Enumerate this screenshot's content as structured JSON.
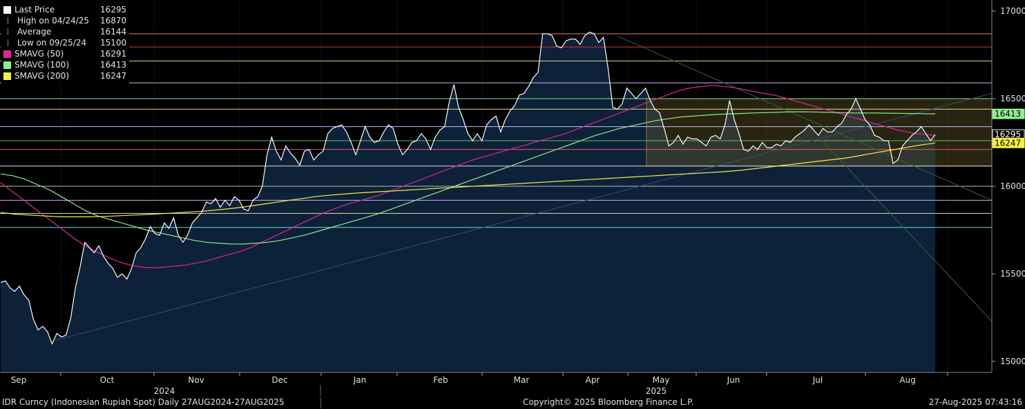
{
  "legend": [
    {
      "symbol": "square-white",
      "label": "Last Price",
      "value": "16295",
      "color": "#ffffff"
    },
    {
      "symbol": "high-marker-icon",
      "label": "High on 04/24/25",
      "value": "16870",
      "color": "#bfbfbf"
    },
    {
      "symbol": "average-marker-icon",
      "label": "Average",
      "value": "16144",
      "color": "#bfbfbf"
    },
    {
      "symbol": "low-marker-icon",
      "label": "Low on 09/25/24",
      "value": "15100",
      "color": "#bfbfbf"
    },
    {
      "symbol": "square-magenta",
      "label": "SMAVG (50)",
      "value": "16291",
      "color": "#e0249a"
    },
    {
      "symbol": "square-green",
      "label": "SMAVG (100)",
      "value": "16413",
      "color": "#90ee90"
    },
    {
      "symbol": "square-yellow",
      "label": "SMAVG (200)",
      "value": "16247",
      "color": "#f5f046"
    }
  ],
  "footer": {
    "left": "IDR Curncy (Indonesian Rupiah Spot)  Daily 27AUG2024-27AUG2025",
    "center": "Copyright© 2025 Bloomberg Finance L.P.",
    "right": "27-Aug-2025 07:43:16"
  },
  "colors": {
    "price": "#ffffff",
    "fill": "#0d2138",
    "sma50": "#e0249a",
    "sma100": "#90ee90",
    "sma200": "#f5f046",
    "grid": "#5a5a5a",
    "box": "#3a3522"
  },
  "chart_data": {
    "type": "line",
    "ylim": [
      14950,
      17050
    ],
    "yticks": [
      15000,
      15500,
      16000,
      16500,
      17000
    ],
    "month_labels": [
      "Sep",
      "Oct",
      "Nov",
      "Dec",
      "Jan",
      "Feb",
      "Mar",
      "Apr",
      "May",
      "Jun",
      "Jul",
      "Aug"
    ],
    "year_labels": [
      "2024",
      "2025"
    ],
    "series": [
      {
        "name": "Last Price",
        "values": [
          15450,
          15460,
          15420,
          15400,
          15430,
          15380,
          15350,
          15240,
          15180,
          15200,
          15170,
          15100,
          15160,
          15140,
          15150,
          15250,
          15420,
          15540,
          15680,
          15650,
          15620,
          15660,
          15600,
          15560,
          15530,
          15480,
          15500,
          15470,
          15530,
          15620,
          15650,
          15700,
          15770,
          15730,
          15720,
          15790,
          15760,
          15820,
          15720,
          15680,
          15720,
          15790,
          15820,
          15850,
          15910,
          15900,
          15930,
          15880,
          15920,
          15890,
          15940,
          15920,
          15870,
          15860,
          15920,
          15940,
          16000,
          16180,
          16280,
          16200,
          16150,
          16230,
          16190,
          16160,
          16120,
          16200,
          16210,
          16150,
          16180,
          16200,
          16300,
          16330,
          16340,
          16350,
          16310,
          16250,
          16180,
          16260,
          16340,
          16280,
          16250,
          16260,
          16310,
          16350,
          16330,
          16240,
          16180,
          16210,
          16250,
          16260,
          16300,
          16270,
          16210,
          16280,
          16320,
          16340,
          16480,
          16580,
          16450,
          16380,
          16300,
          16260,
          16300,
          16260,
          16350,
          16380,
          16400,
          16310,
          16380,
          16430,
          16460,
          16520,
          16530,
          16570,
          16620,
          16650,
          16870,
          16870,
          16860,
          16800,
          16790,
          16830,
          16840,
          16840,
          16810,
          16860,
          16880,
          16870,
          16820,
          16850,
          16670,
          16450,
          16440,
          16470,
          16560,
          16530,
          16500,
          16530,
          16560,
          16490,
          16440,
          16420,
          16330,
          16230,
          16250,
          16290,
          16240,
          16280,
          16270,
          16270,
          16250,
          16230,
          16280,
          16290,
          16270,
          16350,
          16490,
          16380,
          16300,
          16210,
          16200,
          16230,
          16210,
          16250,
          16220,
          16220,
          16240,
          16230,
          16260,
          16250,
          16280,
          16300,
          16320,
          16350,
          16320,
          16290,
          16330,
          16310,
          16310,
          16340,
          16360,
          16410,
          16440,
          16500,
          16440,
          16380,
          16350,
          16290,
          16280,
          16260,
          16260,
          16130,
          16150,
          16230,
          16260,
          16290,
          16310,
          16340,
          16300,
          16260,
          16295
        ]
      },
      {
        "name": "SMAVG (50)",
        "values": [
          16020,
          15980,
          15940,
          15900,
          15860,
          15820,
          15780,
          15740,
          15700,
          15665,
          15635,
          15610,
          15585,
          15565,
          15550,
          15540,
          15535,
          15535,
          15540,
          15545,
          15550,
          15560,
          15570,
          15585,
          15600,
          15615,
          15630,
          15650,
          15675,
          15700,
          15725,
          15750,
          15775,
          15800,
          15825,
          15850,
          15870,
          15890,
          15905,
          15920,
          15935,
          15950,
          15970,
          15990,
          16010,
          16030,
          16050,
          16070,
          16090,
          16110,
          16130,
          16150,
          16165,
          16180,
          16195,
          16210,
          16225,
          16240,
          16255,
          16270,
          16285,
          16300,
          16320,
          16340,
          16360,
          16380,
          16400,
          16420,
          16440,
          16460,
          16480,
          16500,
          16520,
          16540,
          16555,
          16565,
          16570,
          16575,
          16570,
          16565,
          16555,
          16545,
          16535,
          16525,
          16515,
          16500,
          16485,
          16470,
          16455,
          16440,
          16425,
          16410,
          16395,
          16380,
          16365,
          16350,
          16335,
          16320,
          16310,
          16300,
          16295,
          16291
        ]
      },
      {
        "name": "SMAVG (100)",
        "values": [
          16070,
          16060,
          16040,
          16010,
          15980,
          15940,
          15900,
          15860,
          15830,
          15810,
          15790,
          15770,
          15750,
          15735,
          15720,
          15705,
          15690,
          15680,
          15675,
          15670,
          15670,
          15675,
          15680,
          15690,
          15705,
          15720,
          15740,
          15760,
          15780,
          15800,
          15820,
          15840,
          15865,
          15890,
          15915,
          15940,
          15965,
          15990,
          16015,
          16040,
          16065,
          16090,
          16115,
          16140,
          16165,
          16190,
          16215,
          16240,
          16265,
          16290,
          16310,
          16330,
          16345,
          16360,
          16375,
          16385,
          16395,
          16400,
          16405,
          16410,
          16413,
          16415,
          16418,
          16420,
          16422,
          16425,
          16425,
          16424,
          16422,
          16420,
          16418,
          16418,
          16418,
          16417,
          16416,
          16415,
          16414,
          16413
        ]
      },
      {
        "name": "SMAVG (200)",
        "values": [
          15850,
          15840,
          15835,
          15830,
          15825,
          15825,
          15825,
          15828,
          15832,
          15836,
          15840,
          15845,
          15850,
          15855,
          15862,
          15870,
          15880,
          15892,
          15905,
          15918,
          15930,
          15942,
          15950,
          15957,
          15963,
          15968,
          15973,
          15978,
          15983,
          15988,
          15993,
          15998,
          16003,
          16008,
          16013,
          16018,
          16023,
          16028,
          16033,
          16038,
          16043,
          16048,
          16053,
          16058,
          16063,
          16068,
          16073,
          16078,
          16083,
          16090,
          16100,
          16110,
          16120,
          16130,
          16140,
          16150,
          16160,
          16175,
          16190,
          16205,
          16220,
          16235,
          16247
        ]
      }
    ],
    "reference_lines": [
      {
        "name": "h-line-16870",
        "value": 16870,
        "color": "#e08080"
      },
      {
        "name": "h-line-16795",
        "value": 16795,
        "color": "#e03030"
      },
      {
        "name": "h-line-16715",
        "value": 16715,
        "color": "#d8d880"
      },
      {
        "name": "h-line-16590",
        "value": 16590,
        "color": "#c0c0f0"
      },
      {
        "name": "h-line-16500",
        "value": 16500,
        "color": "#90e090"
      },
      {
        "name": "h-line-16440",
        "value": 16440,
        "color": "#e0e080"
      },
      {
        "name": "h-line-16340",
        "value": 16340,
        "color": "#c0c0ff"
      },
      {
        "name": "h-line-16260",
        "value": 16260,
        "color": "#60c060"
      },
      {
        "name": "h-line-16210",
        "value": 16210,
        "color": "#e06060"
      },
      {
        "name": "h-line-16115",
        "value": 16115,
        "color": "#e0e0e0"
      },
      {
        "name": "h-line-16000",
        "value": 16000,
        "color": "#c0c0c0"
      },
      {
        "name": "h-line-15920",
        "value": 15920,
        "color": "#d0b0f0"
      },
      {
        "name": "h-line-15845",
        "value": 15845,
        "color": "#e0e0b0"
      },
      {
        "name": "h-line-15765",
        "value": 15765,
        "color": "#60e0e0"
      }
    ],
    "value_tags": [
      {
        "label": "16413",
        "value": 16413,
        "color": "#90ee90"
      },
      {
        "label": "16295",
        "value": 16295,
        "color": "#ffffff"
      },
      {
        "label": "16247",
        "value": 16247,
        "color": "#f5f046"
      }
    ]
  }
}
